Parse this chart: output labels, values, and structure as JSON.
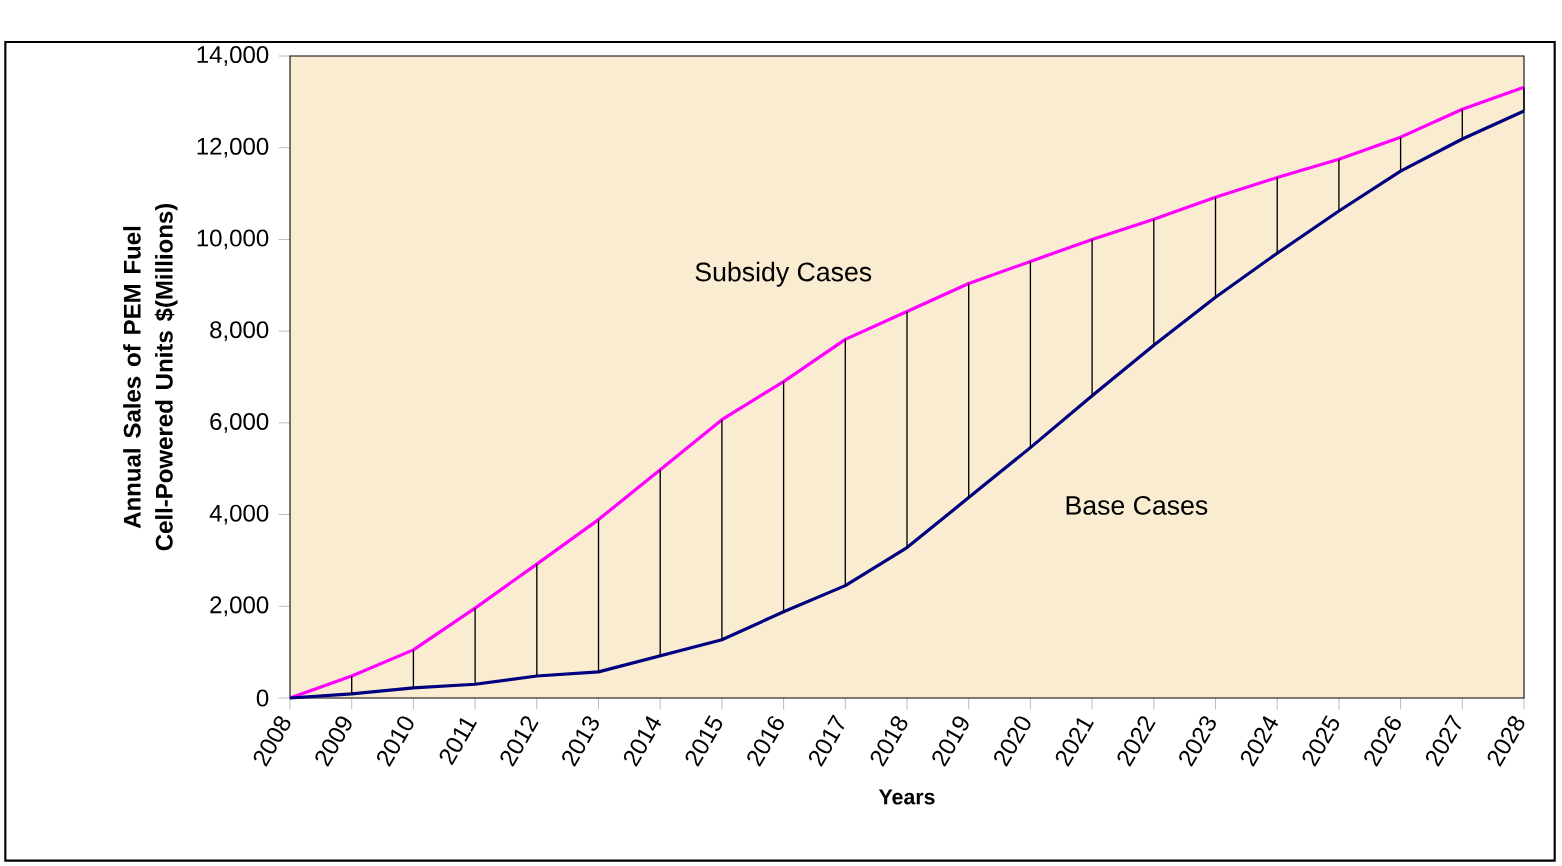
{
  "chart_data": {
    "type": "line",
    "xlabel": "Years",
    "ylabel": "Annual Sales of PEM Fuel Cell-Powered Units $(Millions)",
    "categories": [
      "2008",
      "2009",
      "2010",
      "2011",
      "2012",
      "2013",
      "2014",
      "2015",
      "2016",
      "2017",
      "2018",
      "2019",
      "2020",
      "2021",
      "2022",
      "2023",
      "2024",
      "2025",
      "2026",
      "2027",
      "2028"
    ],
    "series": [
      {
        "name": "Subsidy Cases",
        "color": "#ff00ff",
        "values": [
          0,
          480,
          1050,
          1960,
          2920,
          3890,
          4980,
          6070,
          6900,
          7820,
          8430,
          9040,
          9520,
          10000,
          10440,
          10920,
          11350,
          11750,
          12230,
          12840,
          13320
        ]
      },
      {
        "name": "Base Cases",
        "color": "#000080",
        "values": [
          0,
          90,
          220,
          300,
          480,
          570,
          920,
          1270,
          1880,
          2450,
          3280,
          4370,
          5460,
          6590,
          7690,
          8740,
          9700,
          10620,
          11490,
          12190,
          12800
        ],
        "errors": [
          null,
          [
            90,
            480
          ],
          [
            220,
            1050
          ],
          [
            300,
            1960
          ],
          [
            480,
            2920
          ],
          [
            570,
            3890
          ],
          [
            920,
            4980
          ],
          [
            1270,
            6070
          ],
          [
            1880,
            6900
          ],
          [
            2450,
            7820
          ],
          [
            3280,
            8430
          ],
          [
            4370,
            9040
          ],
          [
            5460,
            9520
          ],
          [
            6590,
            10000
          ],
          [
            7690,
            10440
          ],
          [
            8740,
            10920
          ],
          [
            9700,
            11350
          ],
          [
            10620,
            11750
          ],
          [
            11490,
            12230
          ],
          [
            12190,
            12840
          ],
          [
            12800,
            13320
          ]
        ]
      }
    ],
    "ylim": [
      0,
      14000
    ],
    "yticks": [
      {
        "value": 0,
        "label": "0"
      },
      {
        "value": 2000,
        "label": "2,000"
      },
      {
        "value": 4000,
        "label": "4,000"
      },
      {
        "value": 6000,
        "label": "6,000"
      },
      {
        "value": 8000,
        "label": "8,000"
      },
      {
        "value": 10000,
        "label": "10,000"
      },
      {
        "value": 12000,
        "label": "12,000"
      },
      {
        "value": 14000,
        "label": "14,000"
      }
    ],
    "grid": false,
    "legend": false,
    "marker": "none",
    "line_style": "solid"
  }
}
